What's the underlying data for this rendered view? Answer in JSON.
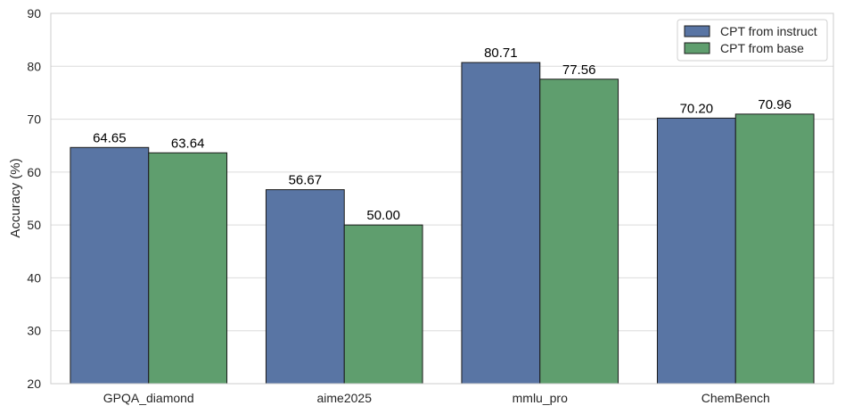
{
  "chart_data": {
    "type": "bar",
    "categories": [
      "GPQA_diamond",
      "aime2025",
      "mmlu_pro",
      "ChemBench"
    ],
    "series": [
      {
        "name": "CPT from instruct",
        "color": "#5975a4",
        "values": [
          64.65,
          56.67,
          80.71,
          70.2
        ],
        "labels": [
          "64.65",
          "56.67",
          "80.71",
          "70.20"
        ]
      },
      {
        "name": "CPT from base",
        "color": "#5f9e6e",
        "values": [
          63.64,
          50.0,
          77.56,
          70.96
        ],
        "labels": [
          "63.64",
          "50.00",
          "77.56",
          "70.96"
        ]
      }
    ],
    "title": "",
    "xlabel": "",
    "ylabel": "Accuracy (%)",
    "ylim": [
      20,
      90
    ],
    "yticks": [
      20,
      30,
      40,
      50,
      60,
      70,
      80,
      90
    ],
    "grid": true,
    "legend_position": "top-right"
  }
}
